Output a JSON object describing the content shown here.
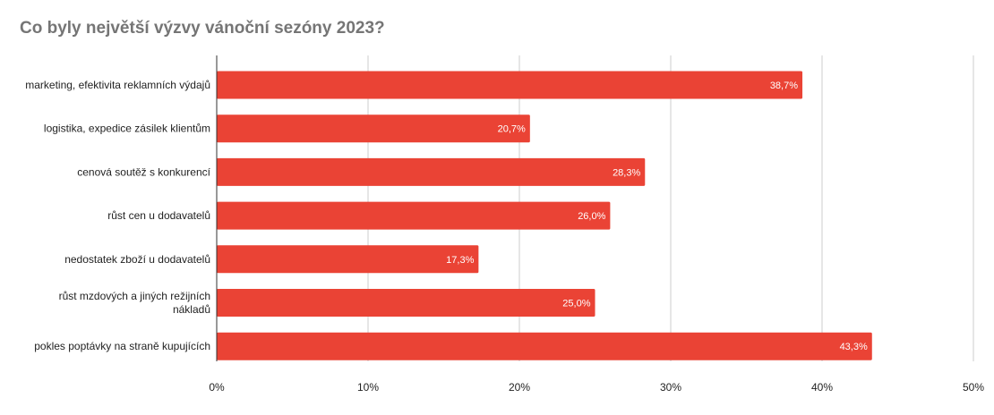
{
  "chart_data": {
    "type": "bar",
    "orientation": "horizontal",
    "title": "Co byly největší výzvy vánoční sezóny 2023?",
    "categories": [
      "marketing, efektivita reklamních výdajů",
      "logistika, expedice zásilek klientům",
      "cenová soutěž s konkurencí",
      "růst cen u dodavatelů",
      "nedostatek zboží u dodavatelů",
      "růst mzdových a jiných režijních nákladů",
      "pokles poptávky na straně kupujících"
    ],
    "category_lines": [
      [
        "marketing, efektivita reklamních výdajů"
      ],
      [
        "logistika, expedice zásilek klientům"
      ],
      [
        "cenová soutěž s konkurencí"
      ],
      [
        "růst cen u dodavatelů"
      ],
      [
        "nedostatek zboží u dodavatelů"
      ],
      [
        "růst mzdových a jiných režijních",
        "nákladů"
      ],
      [
        "pokles poptávky na straně kupujících"
      ]
    ],
    "values": [
      38.7,
      20.7,
      28.3,
      26.0,
      17.3,
      25.0,
      43.3
    ],
    "value_labels": [
      "38,7%",
      "20,7%",
      "28,3%",
      "26,0%",
      "17,3%",
      "25,0%",
      "43,3%"
    ],
    "xlim": [
      0,
      50
    ],
    "xticks": [
      0,
      10,
      20,
      30,
      40,
      50
    ],
    "xtick_labels": [
      "0%",
      "10%",
      "20%",
      "30%",
      "40%",
      "50%"
    ],
    "xlabel": "",
    "ylabel": "",
    "grid": true,
    "legend": "none",
    "colors": {
      "bar": "#ea4335",
      "grid": "#cccccc",
      "axis": "#333333",
      "title": "#757575",
      "text": "#222222",
      "data_label": "#ffffff"
    }
  }
}
